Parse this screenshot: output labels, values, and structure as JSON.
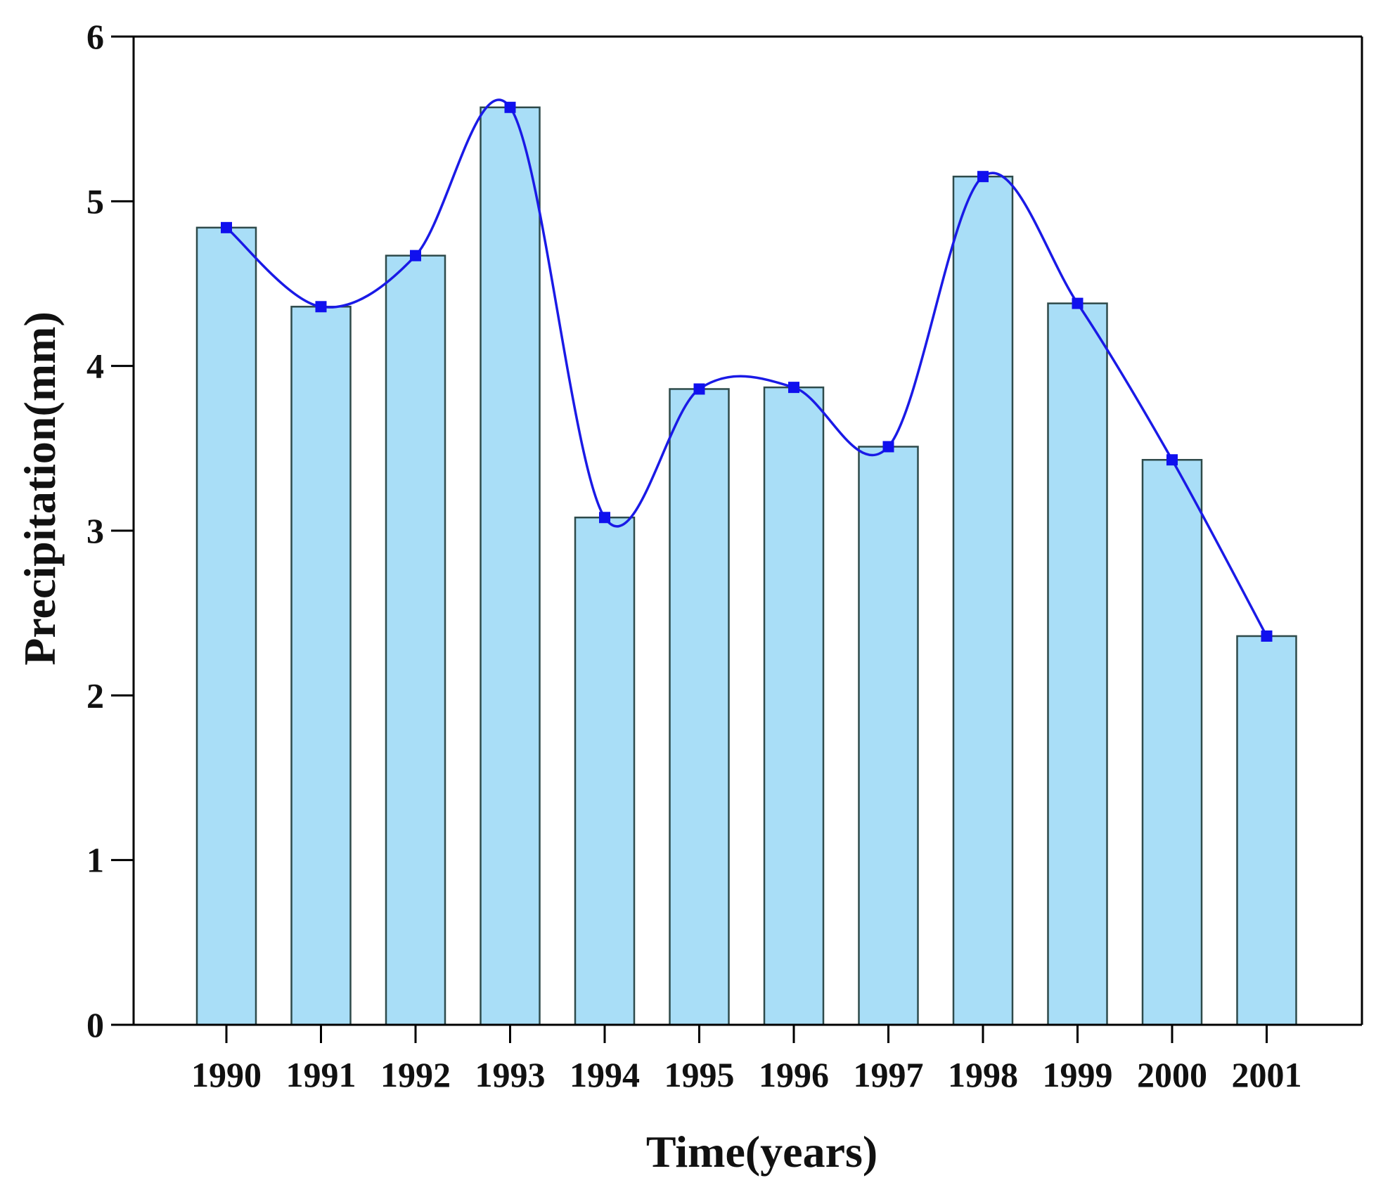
{
  "chart_data": {
    "type": "bar",
    "title": "",
    "xlabel": "Time(years)",
    "ylabel": "Precipitation(mm)",
    "categories": [
      "1990",
      "1991",
      "1992",
      "1993",
      "1994",
      "1995",
      "1996",
      "1997",
      "1998",
      "1999",
      "2000",
      "2001"
    ],
    "values": [
      4.84,
      4.36,
      4.67,
      5.57,
      3.08,
      3.86,
      3.87,
      3.51,
      5.15,
      4.38,
      3.43,
      2.36
    ],
    "overlay": {
      "type": "line",
      "smooth": true,
      "marker": "square",
      "values": [
        4.84,
        4.36,
        4.67,
        5.57,
        3.08,
        3.86,
        3.87,
        3.51,
        5.15,
        4.38,
        3.43,
        2.36
      ]
    },
    "ylim": [
      0,
      6
    ],
    "yticks": [
      "0",
      "1",
      "2",
      "3",
      "4",
      "5",
      "6"
    ],
    "grid": false,
    "legend": "none",
    "colors": {
      "bar_fill": "#a9def7",
      "bar_edge": "#2e4a4a",
      "line": "#1a1ae6",
      "marker": "#1010ee",
      "axis": "#000000"
    }
  }
}
